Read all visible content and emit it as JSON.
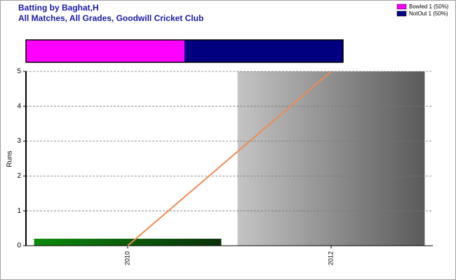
{
  "chart_data": {
    "type": "line",
    "title": "Batting by Baghat,H",
    "subtitle": "All Matches, All Grades, Goodwill Cricket Club",
    "y_label": "Runs",
    "categories": [
      "2010",
      "2012"
    ],
    "series": [
      {
        "color": "#f08a50",
        "values": [
          0,
          5
        ]
      }
    ],
    "bars": {
      "values": [
        0.2,
        5
      ],
      "colors": [
        "#0a7a0a",
        "#9a9a9a"
      ]
    },
    "dismissals": {
      "labels": [
        "Bowled 1 (50%)",
        "NotOut 1 (50%)"
      ],
      "values": [
        1,
        1
      ],
      "colors": [
        "#ff00ff",
        "#000080"
      ]
    },
    "ylim": [
      0,
      5
    ],
    "yticks": [
      0,
      1,
      2,
      3,
      4,
      5
    ],
    "grid": true
  }
}
